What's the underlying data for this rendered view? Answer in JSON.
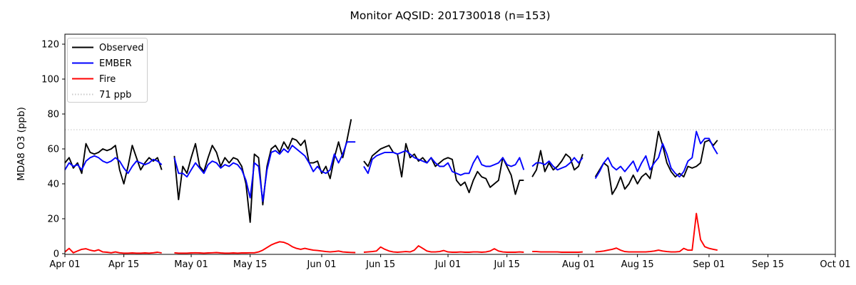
{
  "figure": {
    "title": "Monitor AQSID: 201730018 (n=153)",
    "ylabel": "MDA8 O3 (ppb)"
  },
  "legend": {
    "items": [
      {
        "label": "Observed",
        "color": "#000000",
        "dash": ""
      },
      {
        "label": "EMBER",
        "color": "#0000ff",
        "dash": ""
      },
      {
        "label": "Fire",
        "color": "#ff0000",
        "dash": ""
      },
      {
        "label": "71 ppb",
        "color": "#c9c9c9",
        "dash": "1.5 2.5"
      }
    ]
  },
  "chart_data": {
    "type": "line",
    "title": "Monitor AQSID: 201730018 (n=153)",
    "xlabel": "",
    "ylabel": "MDA8 O3 (ppb)",
    "ylim": [
      0,
      126
    ],
    "yticks": [
      0,
      20,
      40,
      60,
      80,
      100,
      120
    ],
    "grid": false,
    "legend_position": "upper left",
    "x_unit": "days since Apr 01",
    "x_total_days": 183,
    "xticks": [
      {
        "day": 0,
        "label": "Apr 01"
      },
      {
        "day": 14,
        "label": "Apr 15"
      },
      {
        "day": 30,
        "label": "May 01"
      },
      {
        "day": 44,
        "label": "May 15"
      },
      {
        "day": 61,
        "label": "Jun 01"
      },
      {
        "day": 75,
        "label": "Jun 15"
      },
      {
        "day": 91,
        "label": "Jul 01"
      },
      {
        "day": 105,
        "label": "Jul 15"
      },
      {
        "day": 122,
        "label": "Aug 01"
      },
      {
        "day": 136,
        "label": "Aug 15"
      },
      {
        "day": 153,
        "label": "Sep 01"
      },
      {
        "day": 167,
        "label": "Sep 15"
      },
      {
        "day": 183,
        "label": "Oct 01"
      }
    ],
    "threshold": {
      "value": 71,
      "label": "71 ppb",
      "color": "#c9c9c9",
      "style": "dotted"
    },
    "series": [
      {
        "name": "Observed",
        "color": "#000000",
        "values": [
          52,
          55,
          49,
          52,
          46,
          63,
          58,
          57,
          58,
          60,
          59,
          60,
          62,
          48,
          40,
          50,
          62,
          55,
          48,
          52,
          55,
          53,
          55,
          48,
          null,
          null,
          56,
          31,
          50,
          46,
          55,
          63,
          50,
          47,
          55,
          62,
          58,
          50,
          55,
          52,
          55,
          54,
          50,
          40,
          18,
          57,
          55,
          28,
          50,
          60,
          62,
          58,
          64,
          60,
          66,
          65,
          62,
          65,
          52,
          52,
          53,
          46,
          50,
          43,
          55,
          64,
          55,
          65,
          77,
          null,
          null,
          53,
          50,
          56,
          58,
          60,
          61,
          62,
          58,
          57,
          44,
          63,
          55,
          57,
          53,
          55,
          52,
          55,
          50,
          52,
          54,
          55,
          54,
          42,
          39,
          41,
          35,
          42,
          47,
          44,
          43,
          38,
          40,
          42,
          55,
          50,
          45,
          34,
          42,
          42,
          null,
          44,
          48,
          59,
          47,
          52,
          48,
          50,
          53,
          57,
          55,
          48,
          50,
          57,
          null,
          null,
          44,
          48,
          52,
          50,
          34,
          38,
          44,
          37,
          40,
          45,
          40,
          44,
          46,
          43,
          55,
          70,
          62,
          52,
          47,
          44,
          46,
          44,
          50,
          49,
          50,
          52,
          64,
          65,
          62,
          65
        ]
      },
      {
        "name": "EMBER",
        "color": "#0000ff",
        "values": [
          48,
          52,
          50,
          51,
          48,
          53,
          55,
          56,
          55,
          53,
          52,
          53,
          55,
          53,
          49,
          46,
          50,
          53,
          52,
          51,
          52,
          54,
          53,
          51,
          null,
          null,
          55,
          46,
          46,
          44,
          48,
          52,
          49,
          46,
          51,
          53,
          52,
          49,
          51,
          50,
          52,
          51,
          48,
          42,
          32,
          52,
          50,
          30,
          48,
          58,
          59,
          57,
          60,
          58,
          62,
          60,
          58,
          56,
          52,
          47,
          50,
          47,
          46,
          48,
          57,
          52,
          57,
          64,
          64,
          64,
          null,
          50,
          46,
          54,
          56,
          57,
          58,
          58,
          58,
          57,
          58,
          59,
          57,
          55,
          54,
          53,
          52,
          55,
          52,
          50,
          50,
          52,
          47,
          46,
          45,
          46,
          46,
          52,
          56,
          51,
          50,
          50,
          51,
          52,
          55,
          51,
          50,
          51,
          55,
          48,
          null,
          50,
          52,
          52,
          51,
          53,
          50,
          48,
          49,
          50,
          52,
          55,
          52,
          55,
          null,
          null,
          43,
          47,
          52,
          55,
          50,
          48,
          50,
          47,
          50,
          53,
          47,
          52,
          56,
          48,
          52,
          55,
          63,
          57,
          49,
          46,
          44,
          47,
          53,
          55,
          70,
          63,
          66,
          66,
          61,
          57
        ]
      },
      {
        "name": "Fire",
        "color": "#ff0000",
        "values": [
          1,
          3,
          0.5,
          1.5,
          2.5,
          2.8,
          2,
          1.5,
          2.2,
          1,
          0.8,
          0.5,
          1,
          0.5,
          0.3,
          0.3,
          0.4,
          0.3,
          0.3,
          0.4,
          0.3,
          0.5,
          0.8,
          0.4,
          null,
          null,
          0.5,
          0.3,
          0.3,
          0.3,
          0.4,
          0.5,
          0.4,
          0.3,
          0.4,
          0.5,
          0.6,
          0.4,
          0.3,
          0.3,
          0.4,
          0.3,
          0.4,
          0.4,
          0.5,
          0.5,
          1,
          2,
          3.5,
          5,
          6,
          6.8,
          6.5,
          5.5,
          4,
          3,
          2.5,
          3,
          2.5,
          2,
          1.8,
          1.5,
          1.2,
          1,
          1.2,
          1.5,
          1,
          0.8,
          0.7,
          0.6,
          null,
          0.8,
          1,
          1.2,
          1.5,
          3.8,
          2.5,
          1.5,
          1,
          0.8,
          1,
          1.2,
          1,
          2,
          4.5,
          3,
          1.5,
          1,
          1,
          1.2,
          1.8,
          1,
          0.8,
          0.8,
          1,
          0.8,
          0.8,
          1,
          1,
          0.8,
          1,
          1.5,
          2.8,
          1.5,
          1,
          0.8,
          0.8,
          0.8,
          1,
          0.8,
          null,
          1.2,
          1.2,
          1,
          1,
          1,
          1,
          1,
          0.8,
          0.8,
          0.8,
          0.8,
          0.8,
          1,
          null,
          null,
          1,
          1.2,
          1.5,
          2,
          2.5,
          3.2,
          2,
          1.2,
          1,
          1,
          1,
          1,
          1,
          1.2,
          1.5,
          2,
          1.5,
          1.2,
          1,
          1,
          1.2,
          3,
          2,
          2,
          23,
          8,
          4,
          3,
          2.5,
          2
        ]
      }
    ]
  }
}
